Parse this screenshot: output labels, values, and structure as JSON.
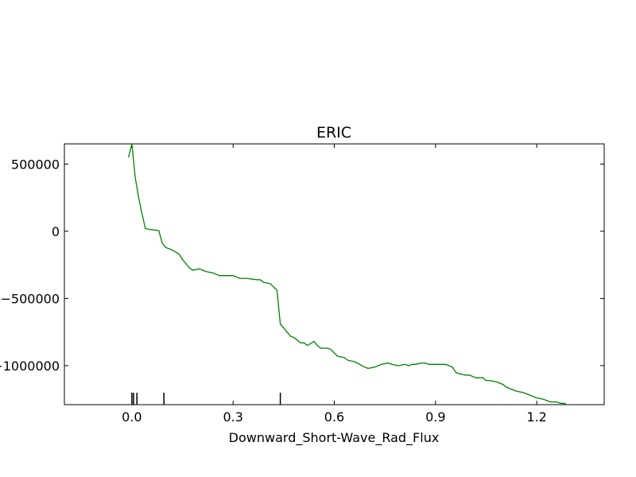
{
  "chart_data": {
    "type": "line",
    "title": "ERIC",
    "xlabel": "Downward_Short-Wave_Rad_Flux",
    "ylabel": "",
    "xlim": [
      -0.2,
      1.4
    ],
    "ylim": [
      -1290000,
      650000
    ],
    "x_ticks": [
      0.0,
      0.3,
      0.6,
      0.9,
      1.2
    ],
    "x_tick_labels": [
      "0.0",
      "0.3",
      "0.6",
      "0.9",
      "1.2"
    ],
    "y_ticks": [
      500000,
      0,
      -500000,
      -1000000
    ],
    "y_tick_labels": [
      "500000",
      "0",
      "−500000",
      "−1000000"
    ],
    "grid": false,
    "series": [
      {
        "color": "#008000",
        "x": [
          -0.01,
          0.0,
          0.01,
          0.02,
          0.03,
          0.04,
          0.05,
          0.08,
          0.09,
          0.1,
          0.12,
          0.14,
          0.15,
          0.17,
          0.18,
          0.2,
          0.22,
          0.24,
          0.26,
          0.3,
          0.32,
          0.34,
          0.37,
          0.38,
          0.39,
          0.41,
          0.43,
          0.44,
          0.45,
          0.47,
          0.48,
          0.5,
          0.51,
          0.52,
          0.54,
          0.55,
          0.56,
          0.58,
          0.59,
          0.61,
          0.63,
          0.64,
          0.66,
          0.69,
          0.7,
          0.72,
          0.73,
          0.74,
          0.76,
          0.77,
          0.79,
          0.81,
          0.82,
          0.83,
          0.84,
          0.86,
          0.87,
          0.88,
          0.89,
          0.91,
          0.93,
          0.95,
          0.96,
          0.97,
          0.99,
          1.0,
          1.02,
          1.04,
          1.05,
          1.06,
          1.08,
          1.1,
          1.11,
          1.13,
          1.14,
          1.16,
          1.17,
          1.19,
          1.2,
          1.22,
          1.23,
          1.24,
          1.26,
          1.27,
          1.28,
          1.29
        ],
        "y": [
          550000,
          650000,
          400000,
          250000,
          130000,
          20000,
          15000,
          5000,
          -90000,
          -120000,
          -140000,
          -170000,
          -210000,
          -270000,
          -290000,
          -280000,
          -300000,
          -310000,
          -330000,
          -330000,
          -350000,
          -350000,
          -360000,
          -360000,
          -380000,
          -390000,
          -440000,
          -690000,
          -720000,
          -780000,
          -790000,
          -830000,
          -830000,
          -850000,
          -820000,
          -850000,
          -870000,
          -870000,
          -880000,
          -930000,
          -940000,
          -960000,
          -970000,
          -1010000,
          -1020000,
          -1010000,
          -1000000,
          -990000,
          -980000,
          -990000,
          -1000000,
          -990000,
          -1000000,
          -990000,
          -990000,
          -980000,
          -980000,
          -990000,
          -990000,
          -990000,
          -990000,
          -1010000,
          -1050000,
          -1060000,
          -1070000,
          -1070000,
          -1090000,
          -1090000,
          -1110000,
          -1110000,
          -1120000,
          -1140000,
          -1160000,
          -1180000,
          -1190000,
          -1200000,
          -1210000,
          -1230000,
          -1240000,
          -1250000,
          -1260000,
          -1270000,
          -1270000,
          -1280000,
          -1280000,
          -1290000
        ]
      }
    ],
    "rug_x": [
      0.0,
      0.005,
      0.015,
      0.095,
      0.44
    ]
  }
}
